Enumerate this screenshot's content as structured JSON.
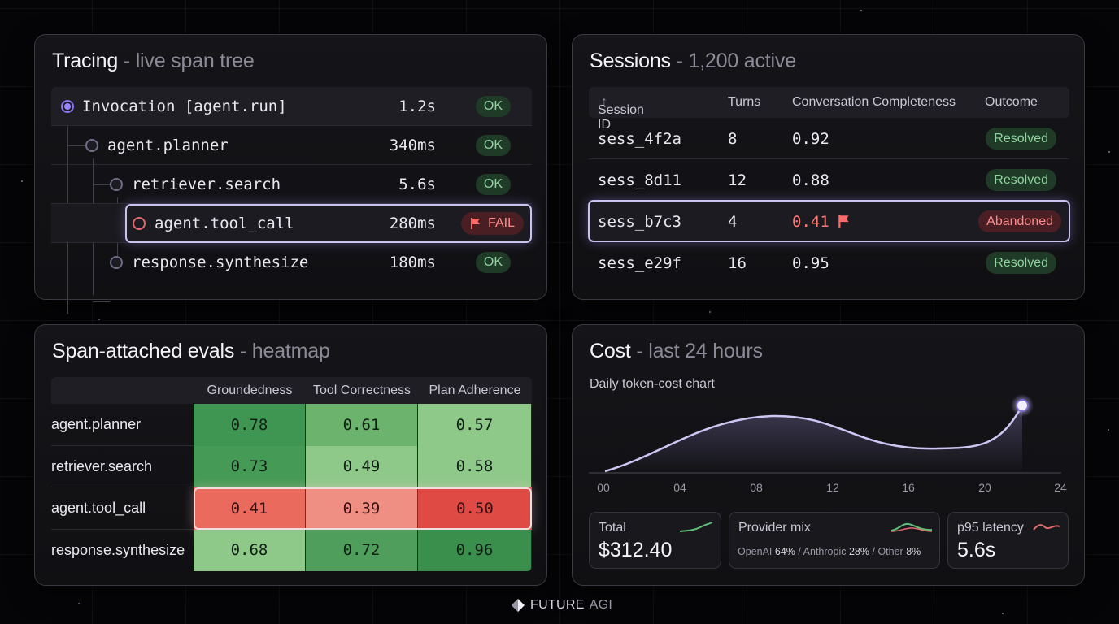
{
  "tracing": {
    "title": "Tracing",
    "separator": "-",
    "subtitle": "live span tree",
    "spans": [
      {
        "name": "Invocation [agent.run]",
        "duration": "1.2s",
        "status": "OK"
      },
      {
        "name": "agent.planner",
        "duration": "340ms",
        "status": "OK"
      },
      {
        "name": "retriever.search",
        "duration": "5.6s",
        "status": "OK"
      },
      {
        "name": "agent.tool_call",
        "duration": "280ms",
        "status": "FAIL"
      },
      {
        "name": "response.synthesize",
        "duration": "180ms",
        "status": "OK"
      }
    ]
  },
  "sessions": {
    "title": "Sessions",
    "separator": "-",
    "subtitle": "1,200 active",
    "columns": {
      "id": "Session ID",
      "sort_icon": "↑",
      "turns": "Turns",
      "completeness": "Conversation Completeness",
      "outcome": "Outcome"
    },
    "rows": [
      {
        "id": "sess_4f2a",
        "turns": "8",
        "completeness": "0.92",
        "outcome": "Resolved"
      },
      {
        "id": "sess_8d11",
        "turns": "12",
        "completeness": "0.88",
        "outcome": "Resolved"
      },
      {
        "id": "sess_b7c3",
        "turns": "4",
        "completeness": "0.41",
        "outcome": "Abandoned"
      },
      {
        "id": "sess_e29f",
        "turns": "16",
        "completeness": "0.95",
        "outcome": "Resolved"
      }
    ]
  },
  "evals": {
    "title": "Span-attached evals",
    "separator": "-",
    "subtitle": "heatmap",
    "columns": [
      "Groundedness",
      "Tool Correctness",
      "Plan Adherence"
    ],
    "rows": [
      {
        "label": "agent.planner",
        "values": [
          "0.78",
          "0.61",
          "0.57"
        ]
      },
      {
        "label": "retriever.search",
        "values": [
          "0.73",
          "0.49",
          "0.58"
        ]
      },
      {
        "label": "agent.tool_call",
        "values": [
          "0.41",
          "0.39",
          "0.50"
        ]
      },
      {
        "label": "response.synthesize",
        "values": [
          "0.68",
          "0.72",
          "0.96"
        ]
      }
    ],
    "colors": {
      "light_green": "#8fc98a",
      "mid_green": "#6cb36e",
      "dark_green": "#3f9652",
      "red": "#e2564f",
      "light_red": "#ef8e82"
    }
  },
  "cost": {
    "title": "Cost",
    "separator": "-",
    "subtitle": "last 24 hours",
    "chart_label": "Daily token-cost chart",
    "x_ticks": [
      "00",
      "04",
      "08",
      "12",
      "16",
      "20",
      "24"
    ],
    "total_label": "Total",
    "total_value": "$312.40",
    "mix_label": "Provider mix",
    "mix": {
      "openai_name": "OpenAI",
      "openai_pct": "64%",
      "anthropic_name": "Anthropic",
      "anthropic_pct": "28%",
      "other_name": "Other",
      "other_pct": "8%",
      "slash": "/"
    },
    "latency_label": "p95 latency",
    "latency_value": "5.6s"
  },
  "footer": {
    "brand_a": "FUTURE",
    "brand_b": "AGI"
  },
  "colors": {
    "accent": "#9a86ff",
    "ok": "#8fd49f",
    "fail": "#ff8c8c",
    "background": "#050507"
  }
}
